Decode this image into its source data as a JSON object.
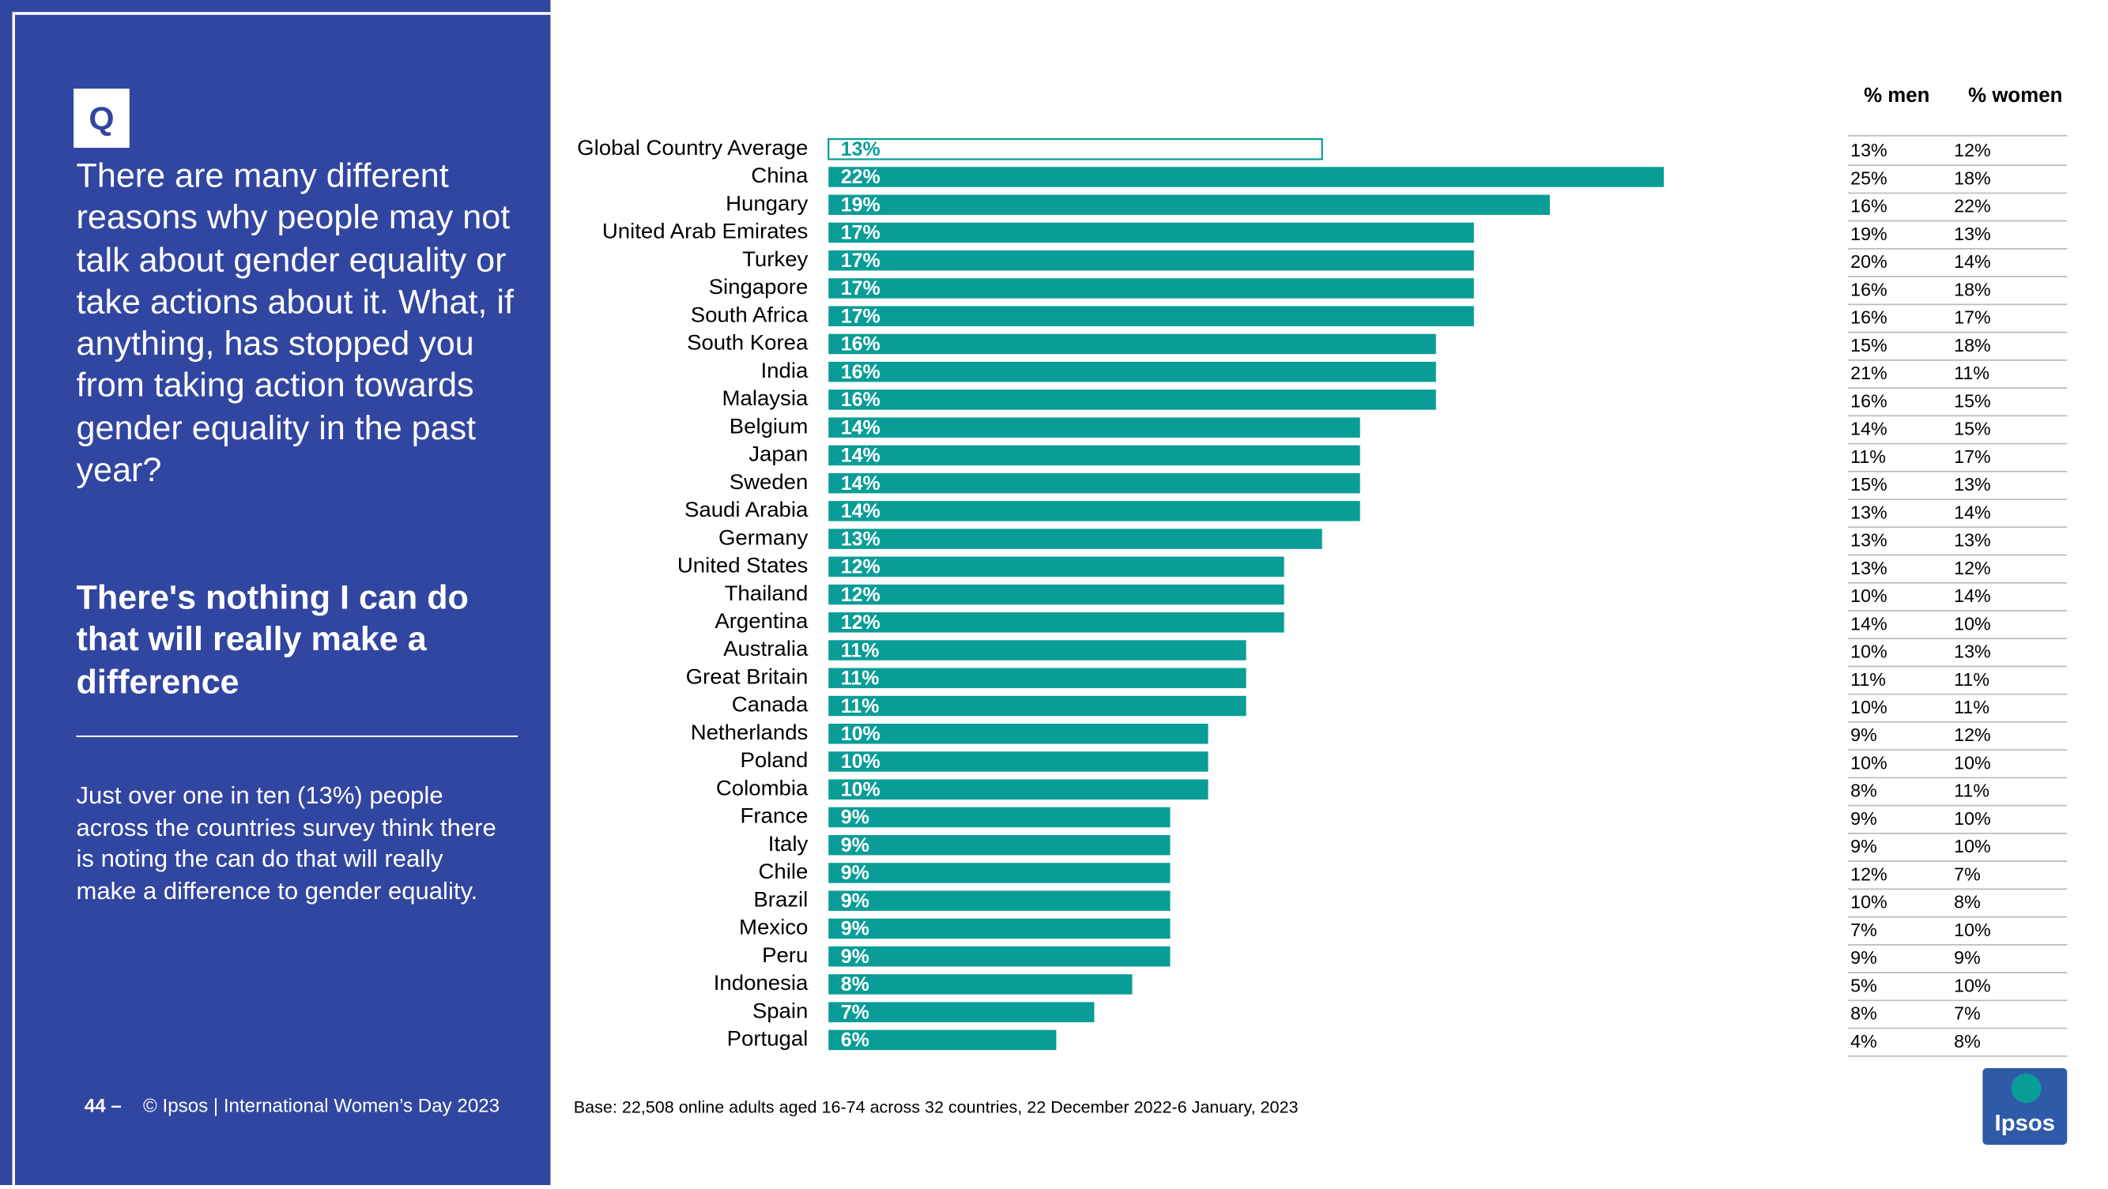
{
  "question": {
    "marker": "Q",
    "text": "There are many different reasons why people may not talk about gender equality or take actions about it.  What, if anything, has stopped you from taking action towards gender equality in the past year?",
    "answer": "There's nothing I can do that will really make a difference",
    "summary": "Just over one in ten (13%) people across the countries survey think there is noting the can do that will really make a difference to gender equality."
  },
  "footer": {
    "page": "44 –",
    "source": "© Ipsos | International Women’s Day 2023",
    "base": "Base: 22,508 online adults aged 16-74 across 32 countries, 22 December 2022-6 January, 2023"
  },
  "logo": {
    "text": "Ipsos"
  },
  "chart_data": {
    "type": "bar",
    "orientation": "horizontal",
    "color": "#0a9d97",
    "categories": [
      "Global Country Average",
      "China",
      "Hungary",
      "United Arab Emirates",
      "Turkey",
      "Singapore",
      "South Africa",
      "South Korea",
      "India",
      "Malaysia",
      "Belgium",
      "Japan",
      "Sweden",
      "Saudi Arabia",
      "Germany",
      "United States",
      "Thailand",
      "Argentina",
      "Australia",
      "Great Britain",
      "Canada",
      "Netherlands",
      "Poland",
      "Colombia",
      "France",
      "Italy",
      "Chile",
      "Brazil",
      "Mexico",
      "Peru",
      "Indonesia",
      "Spain",
      "Portugal"
    ],
    "values": [
      13,
      22,
      19,
      17,
      17,
      17,
      17,
      16,
      16,
      16,
      14,
      14,
      14,
      14,
      13,
      12,
      12,
      12,
      11,
      11,
      11,
      10,
      10,
      10,
      9,
      9,
      9,
      9,
      9,
      9,
      8,
      7,
      6
    ],
    "value_labels": [
      "13%",
      "22%",
      "19%",
      "17%",
      "17%",
      "17%",
      "17%",
      "16%",
      "16%",
      "16%",
      "14%",
      "14%",
      "14%",
      "14%",
      "13%",
      "12%",
      "12%",
      "12%",
      "11%",
      "11%",
      "11%",
      "10%",
      "10%",
      "10%",
      "9%",
      "9%",
      "9%",
      "9%",
      "9%",
      "9%",
      "8%",
      "7%",
      "6%"
    ]
  },
  "table": {
    "headers": [
      "% men",
      "% women"
    ],
    "rows": [
      [
        "13%",
        "12%"
      ],
      [
        "25%",
        "18%"
      ],
      [
        "16%",
        "22%"
      ],
      [
        "19%",
        "13%"
      ],
      [
        "20%",
        "14%"
      ],
      [
        "16%",
        "18%"
      ],
      [
        "16%",
        "17%"
      ],
      [
        "15%",
        "18%"
      ],
      [
        "21%",
        "11%"
      ],
      [
        "16%",
        "15%"
      ],
      [
        "14%",
        "15%"
      ],
      [
        "11%",
        "17%"
      ],
      [
        "15%",
        "13%"
      ],
      [
        "13%",
        "14%"
      ],
      [
        "13%",
        "13%"
      ],
      [
        "13%",
        "12%"
      ],
      [
        "10%",
        "14%"
      ],
      [
        "14%",
        "10%"
      ],
      [
        "10%",
        "13%"
      ],
      [
        "11%",
        "11%"
      ],
      [
        "10%",
        "11%"
      ],
      [
        "9%",
        "12%"
      ],
      [
        "10%",
        "10%"
      ],
      [
        "8%",
        "11%"
      ],
      [
        "9%",
        "10%"
      ],
      [
        "9%",
        "10%"
      ],
      [
        "12%",
        "7%"
      ],
      [
        "10%",
        "8%"
      ],
      [
        "7%",
        "10%"
      ],
      [
        "9%",
        "9%"
      ],
      [
        "5%",
        "10%"
      ],
      [
        "8%",
        "7%"
      ],
      [
        "4%",
        "8%"
      ]
    ]
  }
}
